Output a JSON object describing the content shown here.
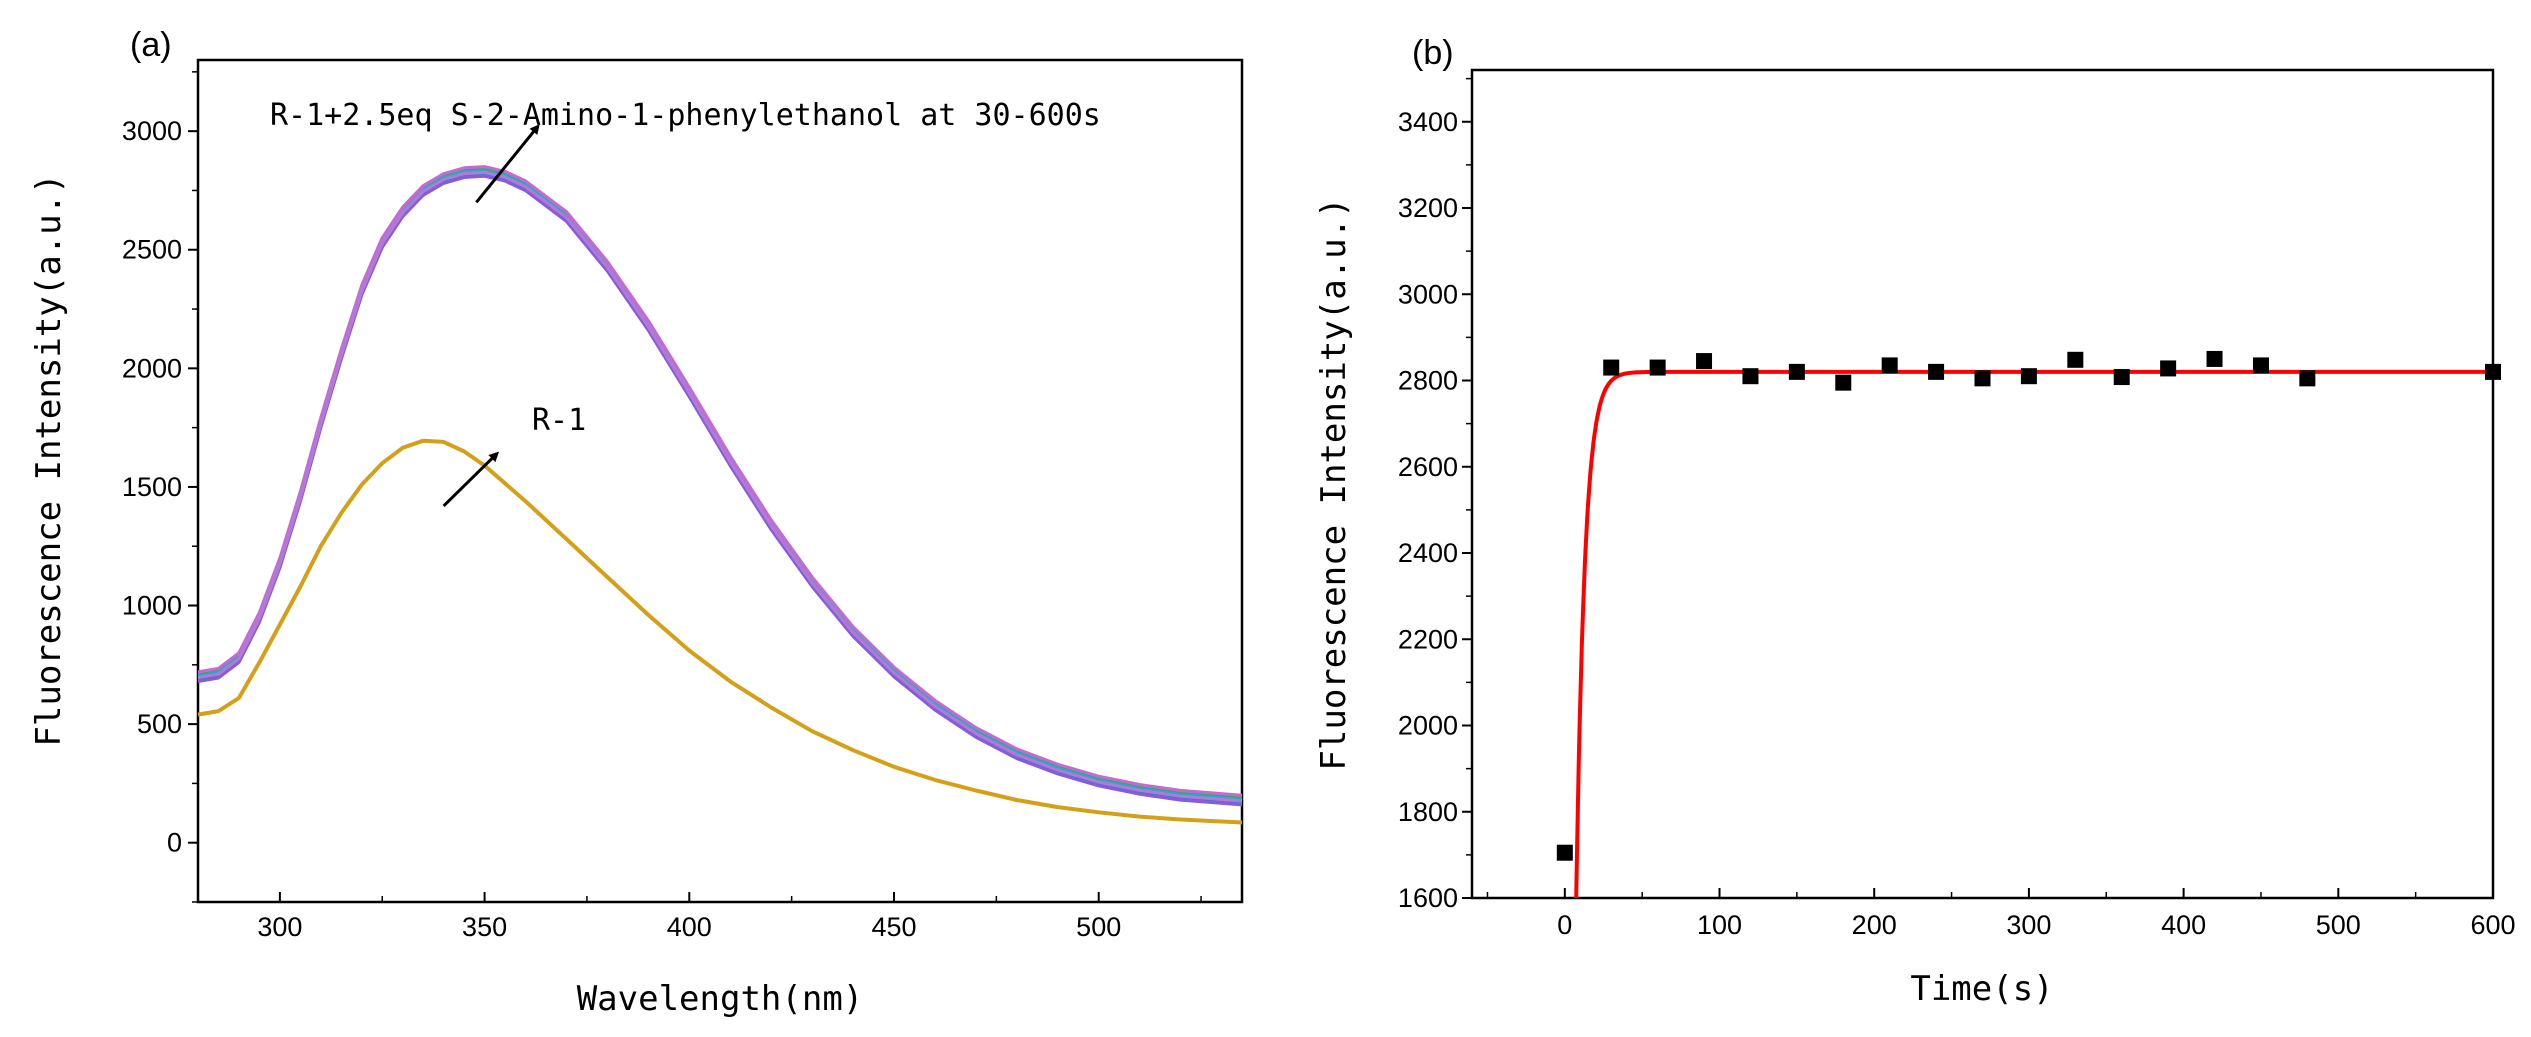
{
  "chart_data": [
    {
      "panel": "(a)",
      "type": "line",
      "xlabel": "Wavelength(nm)",
      "ylabel": "Fluorescence Intensity(a.u.)",
      "xlim": [
        280,
        535
      ],
      "ylim": [
        -250,
        3300
      ],
      "xticks": [
        300,
        350,
        400,
        450,
        500
      ],
      "yticks": [
        0,
        500,
        1000,
        1500,
        2000,
        2500,
        3000
      ],
      "colors": {
        "r1": "#d4a017",
        "group": [
          "#e8474f",
          "#7b7b7b",
          "#3aa63a",
          "#3478c9",
          "#19b0c0",
          "#8a5bd6",
          "#c46bd2",
          "#b07ad8"
        ]
      },
      "series_r1": {
        "name": "R-1",
        "x": [
          280,
          285,
          290,
          295,
          300,
          305,
          310,
          315,
          320,
          325,
          330,
          335,
          340,
          345,
          350,
          360,
          370,
          380,
          390,
          400,
          410,
          420,
          430,
          440,
          450,
          460,
          470,
          480,
          490,
          500,
          510,
          520,
          535
        ],
        "y": [
          540,
          555,
          610,
          760,
          920,
          1080,
          1250,
          1390,
          1510,
          1600,
          1665,
          1695,
          1690,
          1650,
          1590,
          1440,
          1280,
          1120,
          960,
          810,
          680,
          570,
          470,
          390,
          320,
          265,
          220,
          180,
          150,
          128,
          110,
          98,
          85
        ]
      },
      "series_group": {
        "name": "R-1+2.5eq S-2-Amino-1-phenylethanol at 30-600s",
        "x": [
          280,
          285,
          290,
          295,
          300,
          305,
          310,
          315,
          320,
          325,
          330,
          335,
          340,
          345,
          350,
          355,
          360,
          370,
          380,
          390,
          400,
          410,
          420,
          430,
          440,
          450,
          460,
          470,
          480,
          490,
          500,
          510,
          520,
          535
        ],
        "y": [
          700,
          715,
          780,
          950,
          1180,
          1460,
          1770,
          2060,
          2330,
          2530,
          2660,
          2750,
          2800,
          2825,
          2830,
          2810,
          2770,
          2640,
          2430,
          2180,
          1900,
          1610,
          1340,
          1100,
          890,
          720,
          580,
          465,
          375,
          310,
          260,
          225,
          200,
          180
        ],
        "offsets": [
          15,
          -15,
          8,
          -8,
          4,
          -20,
          20,
          -4
        ]
      },
      "annotations": [
        {
          "text": "R-1+2.5eq S-2-Amino-1-phenylethanol at 30-600s",
          "arrow_from": [
            348,
            2700
          ],
          "arrow_to": [
            363,
            3020
          ]
        },
        {
          "text": "R-1",
          "arrow_from": [
            340,
            1420
          ],
          "arrow_to": [
            353,
            1640
          ]
        }
      ]
    },
    {
      "panel": "(b)",
      "type": "scatter",
      "xlabel": "Time(s)",
      "ylabel": "Fluorescence Intensity(a.u.)",
      "xlim": [
        -60,
        600
      ],
      "ylim": [
        1600,
        3520
      ],
      "xticks": [
        0,
        100,
        200,
        300,
        400,
        500,
        600
      ],
      "yticks": [
        1600,
        1800,
        2000,
        2200,
        2400,
        2600,
        2800,
        3000,
        3200,
        3400
      ],
      "points": {
        "x": [
          0,
          30,
          60,
          90,
          120,
          150,
          180,
          210,
          240,
          270,
          300,
          330,
          360,
          390,
          420,
          450,
          480,
          600
        ],
        "y": [
          1705,
          2830,
          2830,
          2845,
          2810,
          2820,
          2795,
          2835,
          2820,
          2805,
          2810,
          2848,
          2808,
          2828,
          2850,
          2835,
          2805,
          2820
        ]
      },
      "fit": {
        "asymptote": 2820,
        "amplitude": 4600,
        "rate": 0.18,
        "color": "#ff0000"
      },
      "marker_color": "#000000"
    }
  ]
}
